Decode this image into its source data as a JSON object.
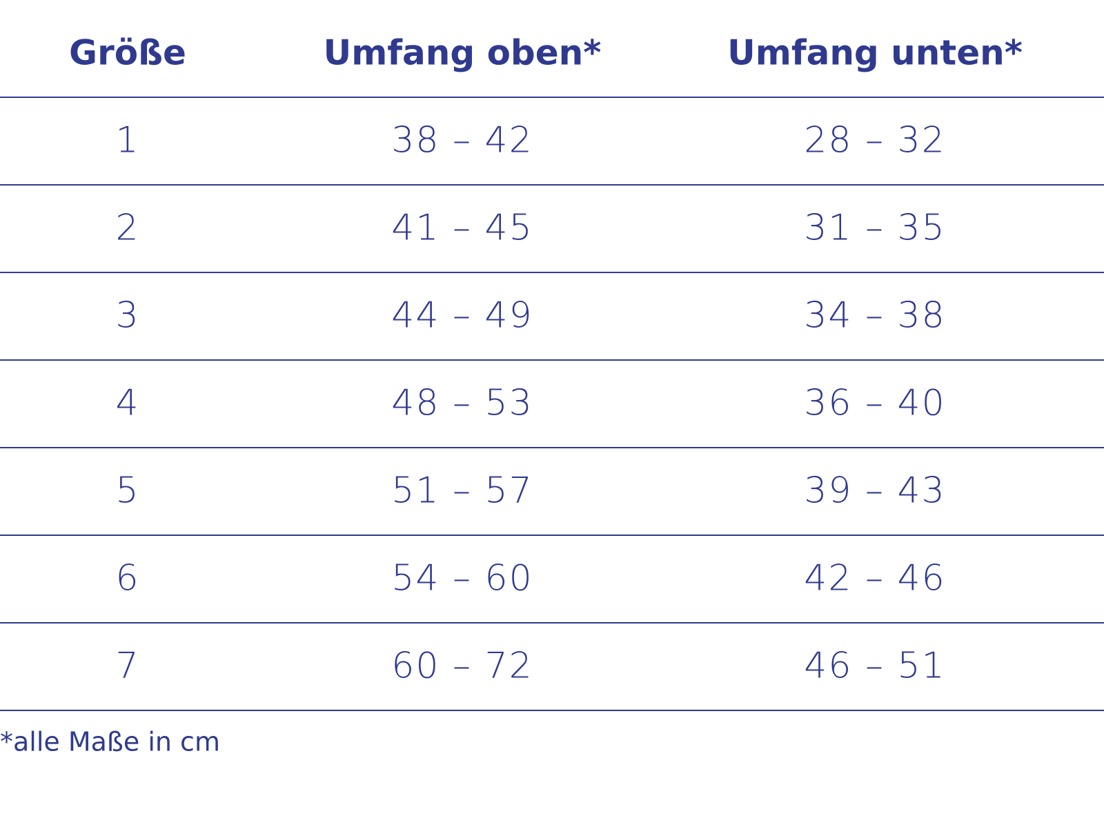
{
  "table": {
    "header": [
      "Größe",
      "Umfang oben*",
      "Umfang unten*"
    ],
    "rows": [
      [
        "1",
        "38 – 42",
        "28 – 32"
      ],
      [
        "2",
        "41 – 45",
        "31 – 35"
      ],
      [
        "3",
        "44 – 49",
        "34 – 38"
      ],
      [
        "4",
        "48 – 53",
        "36 – 40"
      ],
      [
        "5",
        "51 – 57",
        "39 – 43"
      ],
      [
        "6",
        "54 – 60",
        "42 – 46"
      ],
      [
        "7",
        "60 – 72",
        "46 – 51"
      ]
    ],
    "footnote": "*alle Maße in cm"
  }
}
